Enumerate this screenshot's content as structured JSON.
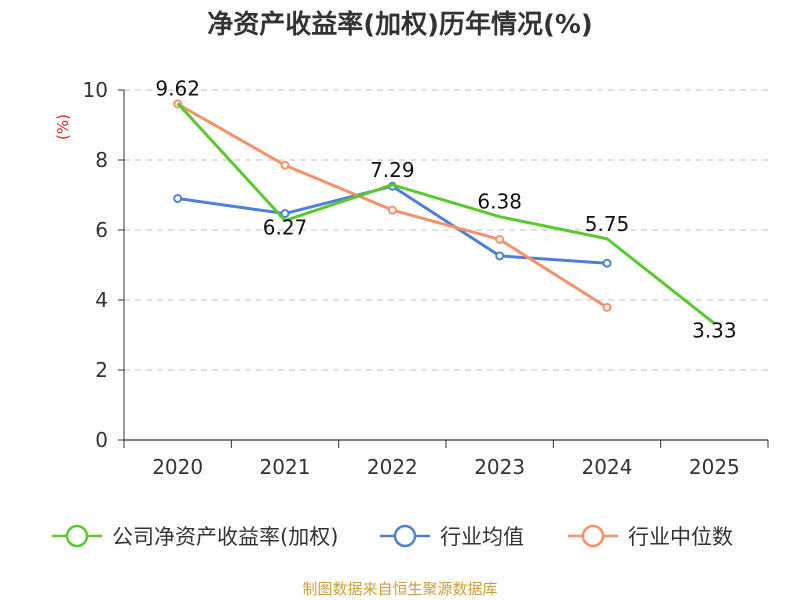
{
  "chart_data": {
    "type": "line",
    "title": "净资产收益率(加权)历年情况(%)",
    "ylabel": "(%)",
    "xlabel": "",
    "categories": [
      "2020",
      "2021",
      "2022",
      "2023",
      "2024",
      "2025"
    ],
    "ylim": [
      0,
      10
    ],
    "yticks": [
      "0",
      "2",
      "4",
      "6",
      "8",
      "10"
    ],
    "grid": true,
    "legend_position": "bottom",
    "series": [
      {
        "name": "公司净资产收益率(加权)",
        "color": "#5ac92e",
        "values": [
          9.62,
          6.27,
          7.29,
          6.38,
          5.75,
          3.33
        ],
        "labels": [
          "9.62",
          "6.27",
          "7.29",
          "6.38",
          "5.75",
          "3.33"
        ]
      },
      {
        "name": "行业均值",
        "color": "#4e7fd9",
        "values": [
          6.9,
          6.47,
          7.25,
          5.26,
          5.05,
          null
        ]
      },
      {
        "name": "行业中位数",
        "color": "#f89068",
        "values": [
          9.6,
          7.85,
          6.57,
          5.73,
          3.79,
          null
        ]
      }
    ]
  },
  "source": "制图数据来自恒生聚源数据库",
  "colors": {
    "title": "#333333",
    "ylabel": "#e02020",
    "source": "#c8a03c",
    "grid": "#cccccc",
    "axis": "#333333"
  }
}
